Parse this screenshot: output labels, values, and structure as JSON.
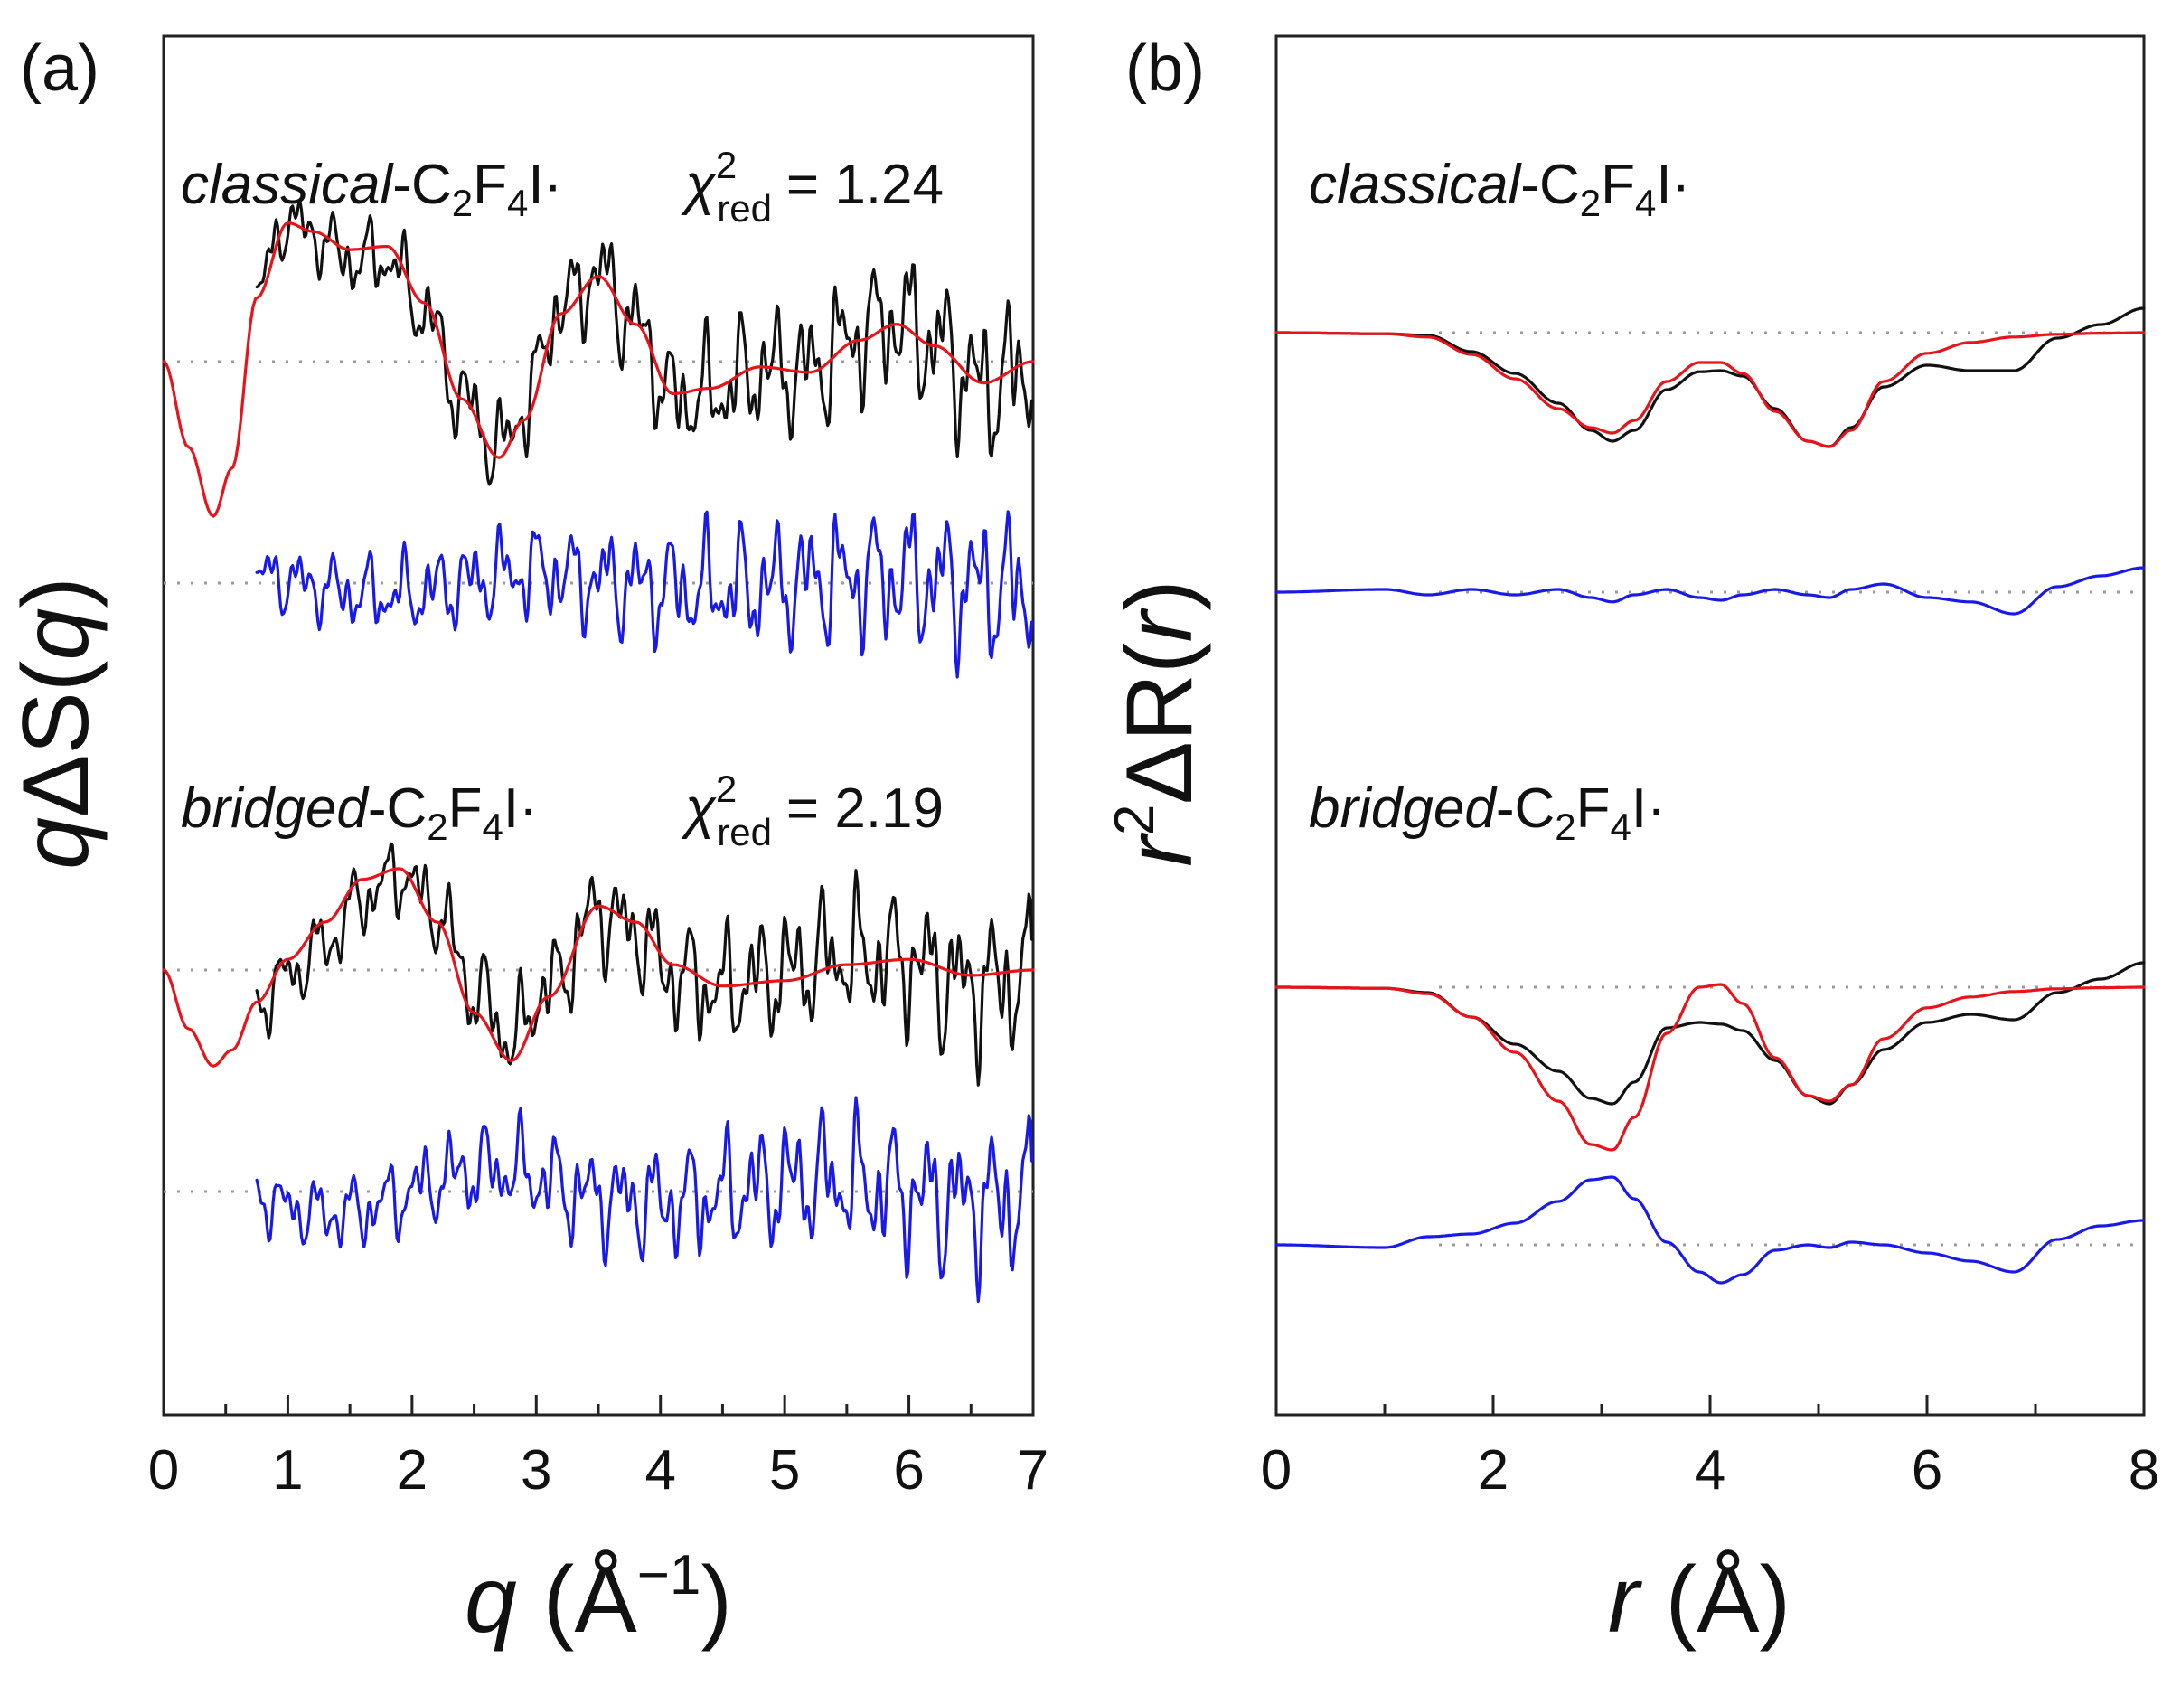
{
  "chart_data": [
    {
      "type": "line",
      "panel_label": "(a)",
      "xlabel_var": "q",
      "xlabel_unit": " (Å",
      "xlabel_exp": "−1",
      "xlabel_close": ")",
      "ylabel_var": "q",
      "ylabel_rest": "ΔS(",
      "ylabel_var2": "q",
      "ylabel_close": ")",
      "xlim": [
        0,
        7
      ],
      "xticks": [
        "0",
        "1",
        "2",
        "3",
        "4",
        "5",
        "6",
        "7"
      ],
      "legend": "none",
      "grid": false,
      "annotations": [
        {
          "structure": "classical",
          "formula_prefix": "-C",
          "sub1": "2",
          "mid": "F",
          "sub2": "4",
          "suffix": "I·",
          "chi_symbol": "χ",
          "chi_sup": "2",
          "chi_sub": "red",
          "chi_value": "= 1.24"
        },
        {
          "structure": "bridged",
          "formula_prefix": "-C",
          "sub1": "2",
          "mid": "F",
          "sub2": "4",
          "suffix": "I·",
          "chi_symbol": "χ",
          "chi_sup": "2",
          "chi_sub": "red",
          "chi_value": "= 2.19"
        }
      ],
      "series_colors": {
        "experiment": "#111111",
        "fit": "#e8141b",
        "residual": "#1a1ae6",
        "baseline": "#9a9a9a"
      },
      "fit_curves": {
        "classical": {
          "x": [
            0,
            0.2,
            0.4,
            0.55,
            0.75,
            1.0,
            1.2,
            1.5,
            1.8,
            2.1,
            2.4,
            2.7,
            2.9,
            3.2,
            3.5,
            3.8,
            4.1,
            4.4,
            4.8,
            5.2,
            5.6,
            5.9,
            6.2,
            6.6,
            7.0
          ],
          "y": [
            0,
            -0.8,
            -1.45,
            -1.0,
            0.6,
            1.3,
            1.22,
            1.05,
            1.08,
            0.55,
            -0.35,
            -0.9,
            -0.55,
            0.45,
            0.8,
            0.35,
            -0.3,
            -0.25,
            -0.05,
            -0.1,
            0.2,
            0.35,
            0.15,
            -0.2,
            0.0
          ]
        },
        "bridged": {
          "x": [
            0,
            0.2,
            0.4,
            0.55,
            0.75,
            1.0,
            1.3,
            1.6,
            1.9,
            2.2,
            2.5,
            2.8,
            3.1,
            3.5,
            3.8,
            4.1,
            4.5,
            5.0,
            5.5,
            6.0,
            6.5,
            7.0
          ],
          "y": [
            0,
            -0.55,
            -0.9,
            -0.75,
            -0.3,
            0.1,
            0.45,
            0.85,
            0.95,
            0.45,
            -0.4,
            -0.85,
            -0.25,
            0.6,
            0.45,
            0.05,
            -0.15,
            -0.1,
            0.05,
            0.1,
            -0.05,
            0.0
          ]
        }
      }
    },
    {
      "type": "line",
      "panel_label": "(b)",
      "xlabel_var": "r",
      "xlabel_unit": " (Å)",
      "ylabel_var": "r",
      "ylabel_sup": "2",
      "ylabel_rest": "ΔR(",
      "ylabel_var2": "r",
      "ylabel_close": ")",
      "xlim": [
        0,
        8
      ],
      "xticks": [
        "0",
        "2",
        "4",
        "6",
        "8"
      ],
      "legend": "none",
      "grid": false,
      "annotations": [
        {
          "structure": "classical",
          "formula_prefix": "-C",
          "sub1": "2",
          "mid": "F",
          "sub2": "4",
          "suffix": "I·"
        },
        {
          "structure": "bridged",
          "formula_prefix": "-C",
          "sub1": "2",
          "mid": "F",
          "sub2": "4",
          "suffix": "I·"
        }
      ],
      "series_colors": {
        "experiment": "#111111",
        "fit": "#e8141b",
        "residual": "#1a1ae6",
        "baseline": "#9a9a9a"
      },
      "curves": {
        "classical": {
          "x": [
            0,
            1.0,
            1.4,
            1.8,
            2.2,
            2.6,
            2.9,
            3.1,
            3.3,
            3.6,
            3.9,
            4.1,
            4.3,
            4.6,
            4.9,
            5.1,
            5.3,
            5.6,
            6.0,
            6.4,
            6.8,
            7.2,
            7.6,
            8.0
          ],
          "experiment": [
            0,
            -0.02,
            -0.05,
            -0.35,
            -0.75,
            -1.3,
            -1.8,
            -2.0,
            -1.8,
            -1.05,
            -0.72,
            -0.7,
            -0.8,
            -1.4,
            -2.0,
            -2.1,
            -1.75,
            -1.0,
            -0.6,
            -0.7,
            -0.7,
            -0.1,
            0.15,
            0.45
          ],
          "fit": [
            0,
            -0.02,
            -0.08,
            -0.4,
            -0.85,
            -1.4,
            -1.75,
            -1.85,
            -1.62,
            -0.9,
            -0.55,
            -0.55,
            -0.75,
            -1.45,
            -2.0,
            -2.1,
            -1.8,
            -0.9,
            -0.38,
            -0.18,
            -0.08,
            -0.03,
            -0.01,
            0
          ],
          "residual": [
            0,
            0.05,
            -0.05,
            0.05,
            -0.05,
            0.05,
            -0.1,
            -0.18,
            -0.05,
            0.05,
            -0.1,
            -0.15,
            -0.05,
            0.05,
            -0.05,
            -0.1,
            0.05,
            0.15,
            -0.1,
            -0.18,
            -0.4,
            0.1,
            0.3,
            0.45
          ]
        },
        "bridged": {
          "x": [
            0,
            1.0,
            1.4,
            1.8,
            2.2,
            2.6,
            2.9,
            3.1,
            3.3,
            3.6,
            3.9,
            4.1,
            4.3,
            4.6,
            4.9,
            5.1,
            5.3,
            5.6,
            6.0,
            6.4,
            6.8,
            7.2,
            7.6,
            8.0
          ],
          "experiment": [
            0,
            -0.02,
            -0.1,
            -0.55,
            -1.05,
            -1.55,
            -2.05,
            -2.15,
            -1.75,
            -0.75,
            -0.65,
            -0.68,
            -0.8,
            -1.35,
            -2.0,
            -2.15,
            -1.8,
            -1.15,
            -0.65,
            -0.5,
            -0.6,
            -0.1,
            0.15,
            0.45
          ],
          "fit": [
            0,
            -0.02,
            -0.12,
            -0.55,
            -1.2,
            -2.1,
            -2.9,
            -3.0,
            -2.4,
            -0.85,
            0.0,
            0.05,
            -0.3,
            -1.3,
            -2.0,
            -2.1,
            -1.8,
            -0.95,
            -0.38,
            -0.18,
            -0.08,
            -0.03,
            -0.01,
            0
          ],
          "residual": [
            0,
            -0.05,
            0.15,
            0.2,
            0.4,
            0.8,
            1.2,
            1.25,
            0.85,
            0.05,
            -0.5,
            -0.7,
            -0.55,
            -0.1,
            0.0,
            -0.05,
            0.05,
            0.0,
            -0.15,
            -0.3,
            -0.5,
            0.1,
            0.35,
            0.45
          ]
        }
      }
    }
  ]
}
